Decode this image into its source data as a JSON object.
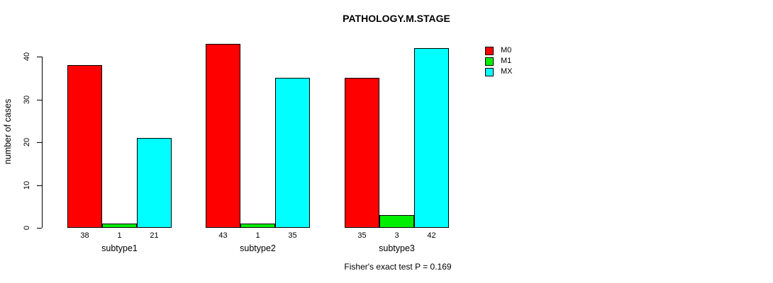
{
  "chart_data": {
    "type": "bar",
    "title": "PATHOLOGY.M.STAGE",
    "xlabel": "",
    "ylabel": "number of cases",
    "categories": [
      "subtype1",
      "subtype2",
      "subtype3"
    ],
    "series": [
      {
        "name": "M0",
        "color": "#FF0000",
        "values": [
          38,
          43,
          35
        ]
      },
      {
        "name": "M1",
        "color": "#00EE00",
        "values": [
          1,
          1,
          3
        ]
      },
      {
        "name": "MX",
        "color": "#00FFFF",
        "values": [
          21,
          35,
          42
        ]
      }
    ],
    "bar_value_labels": [
      [
        "38",
        "1",
        "21"
      ],
      [
        "43",
        "1",
        "35"
      ],
      [
        "35",
        "3",
        "42"
      ]
    ],
    "yticks": [
      "0",
      "10",
      "20",
      "30",
      "40"
    ],
    "ylim": [
      0,
      43
    ],
    "grid": false,
    "legend_position": "top-right",
    "annotation": "Fisher's exact test P = 0.169"
  }
}
